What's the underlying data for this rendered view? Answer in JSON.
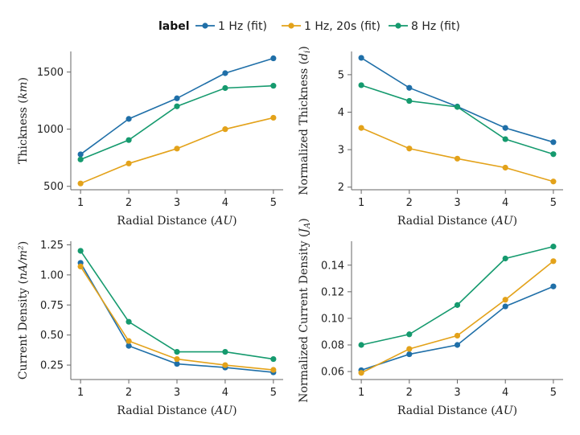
{
  "legend": {
    "title": "label",
    "placement": "top-center"
  },
  "colors": {
    "1 Hz (fit)": "#1f6fa8",
    "1 Hz, 20s (fit)": "#e3a21a",
    "8 Hz (fit)": "#159a6e"
  },
  "chart_data": [
    {
      "type": "line",
      "xlabel": "Radial Distance (AU)",
      "ylabel": "Thickness (km)",
      "x": [
        1,
        2,
        3,
        4,
        5
      ],
      "xticks": [
        1,
        2,
        3,
        4,
        5
      ],
      "ylim": [
        470,
        1680
      ],
      "yticks": [
        500,
        1000,
        1500
      ],
      "series": [
        {
          "name": "1 Hz (fit)",
          "values": [
            780,
            1090,
            1270,
            1490,
            1620
          ]
        },
        {
          "name": "1 Hz, 20s (fit)",
          "values": [
            525,
            700,
            830,
            1000,
            1100
          ]
        },
        {
          "name": "8 Hz (fit)",
          "values": [
            735,
            905,
            1200,
            1360,
            1380
          ]
        }
      ]
    },
    {
      "type": "line",
      "xlabel": "Radial Distance (AU)",
      "ylabel": "Normalized Thickness (d_i)",
      "x": [
        1,
        2,
        3,
        4,
        5
      ],
      "xticks": [
        1,
        2,
        3,
        4,
        5
      ],
      "ylim": [
        1.93,
        5.62
      ],
      "yticks": [
        2,
        3,
        4,
        5
      ],
      "series": [
        {
          "name": "1 Hz (fit)",
          "values": [
            5.45,
            4.65,
            4.15,
            3.58,
            3.2
          ]
        },
        {
          "name": "1 Hz, 20s (fit)",
          "values": [
            3.58,
            3.03,
            2.76,
            2.52,
            2.15
          ]
        },
        {
          "name": "8 Hz (fit)",
          "values": [
            4.72,
            4.3,
            4.14,
            3.28,
            2.88
          ]
        }
      ]
    },
    {
      "type": "line",
      "xlabel": "Radial Distance (AU)",
      "ylabel": "Current Density (nA/m²)",
      "x": [
        1,
        2,
        3,
        4,
        5
      ],
      "xticks": [
        1,
        2,
        3,
        4,
        5
      ],
      "ylim": [
        0.13,
        1.28
      ],
      "yticks": [
        0.25,
        0.5,
        0.75,
        1.0,
        1.25
      ],
      "series": [
        {
          "name": "1 Hz (fit)",
          "values": [
            1.1,
            0.41,
            0.26,
            0.23,
            0.19
          ]
        },
        {
          "name": "1 Hz, 20s (fit)",
          "values": [
            1.07,
            0.45,
            0.3,
            0.25,
            0.21
          ]
        },
        {
          "name": "8 Hz (fit)",
          "values": [
            1.2,
            0.61,
            0.36,
            0.36,
            0.3
          ]
        }
      ]
    },
    {
      "type": "line",
      "xlabel": "Radial Distance (AU)",
      "ylabel": "Normalized Current Density (J_A)",
      "x": [
        1,
        2,
        3,
        4,
        5
      ],
      "xticks": [
        1,
        2,
        3,
        4,
        5
      ],
      "ylim": [
        0.054,
        0.158
      ],
      "yticks": [
        0.06,
        0.08,
        0.1,
        0.12,
        0.14
      ],
      "series": [
        {
          "name": "1 Hz (fit)",
          "values": [
            0.061,
            0.073,
            0.08,
            0.109,
            0.124
          ]
        },
        {
          "name": "1 Hz, 20s (fit)",
          "values": [
            0.059,
            0.077,
            0.087,
            0.114,
            0.143
          ]
        },
        {
          "name": "8 Hz (fit)",
          "values": [
            0.08,
            0.088,
            0.11,
            0.145,
            0.154
          ]
        }
      ]
    }
  ]
}
